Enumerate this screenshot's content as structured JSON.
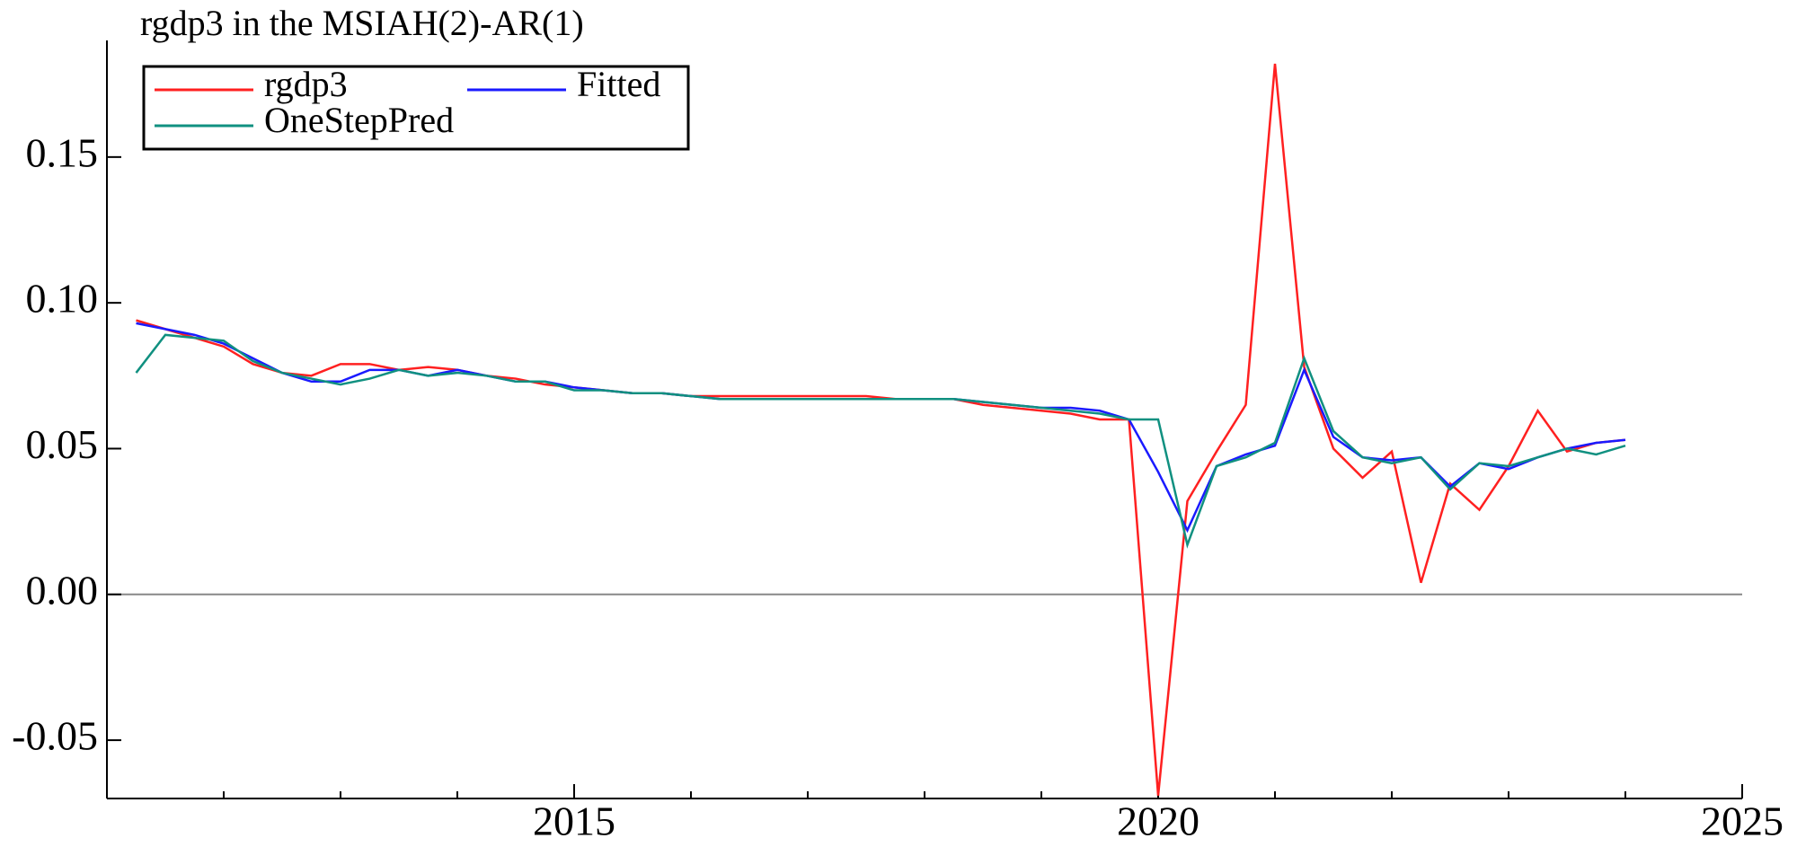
{
  "chart_data": {
    "type": "line",
    "title": "rgdp3 in the MSIAH(2)-AR(1)",
    "x": [
      2011.25,
      2011.5,
      2011.75,
      2012,
      2012.25,
      2012.5,
      2012.75,
      2013,
      2013.25,
      2013.5,
      2013.75,
      2014,
      2014.25,
      2014.5,
      2014.75,
      2015,
      2015.25,
      2015.5,
      2015.75,
      2016,
      2016.25,
      2016.5,
      2016.75,
      2017,
      2017.25,
      2017.5,
      2017.75,
      2018,
      2018.25,
      2018.5,
      2018.75,
      2019,
      2019.25,
      2019.5,
      2019.75,
      2020,
      2020.25,
      2020.5,
      2020.75,
      2021,
      2021.25,
      2021.5,
      2021.75,
      2022,
      2022.25,
      2022.5,
      2022.75,
      2023,
      2023.25,
      2023.5,
      2023.75,
      2024
    ],
    "series": [
      {
        "name": "rgdp3",
        "color": "#ff2020",
        "values": [
          0.094,
          0.091,
          0.088,
          0.085,
          0.079,
          0.076,
          0.075,
          0.079,
          0.079,
          0.077,
          0.078,
          0.077,
          0.075,
          0.074,
          0.072,
          0.071,
          0.07,
          0.069,
          0.069,
          0.068,
          0.068,
          0.068,
          0.068,
          0.068,
          0.068,
          0.068,
          0.067,
          0.067,
          0.067,
          0.065,
          0.064,
          0.063,
          0.062,
          0.06,
          0.06,
          -0.069,
          0.032,
          0.049,
          0.065,
          0.182,
          0.078,
          0.05,
          0.04,
          0.049,
          0.004,
          0.038,
          0.029,
          0.044,
          0.063,
          0.049,
          0.052,
          0.053
        ]
      },
      {
        "name": "Fitted",
        "color": "#1a1aff",
        "values": [
          0.093,
          0.091,
          0.089,
          0.086,
          0.081,
          0.076,
          0.073,
          0.073,
          0.077,
          0.077,
          0.075,
          0.077,
          0.075,
          0.073,
          0.073,
          0.071,
          0.07,
          0.069,
          0.069,
          0.068,
          0.067,
          0.067,
          0.067,
          0.067,
          0.067,
          0.067,
          0.067,
          0.067,
          0.067,
          0.066,
          0.065,
          0.064,
          0.064,
          0.063,
          0.06,
          0.042,
          0.022,
          0.044,
          0.048,
          0.051,
          0.077,
          0.054,
          0.047,
          0.046,
          0.047,
          0.037,
          0.045,
          0.043,
          0.047,
          0.05,
          0.052,
          0.053
        ]
      },
      {
        "name": "OneStepPred",
        "color": "#109080",
        "values": [
          0.076,
          0.089,
          0.088,
          0.087,
          0.08,
          0.076,
          0.074,
          0.072,
          0.074,
          0.077,
          0.075,
          0.076,
          0.075,
          0.073,
          0.073,
          0.07,
          0.07,
          0.069,
          0.069,
          0.068,
          0.067,
          0.067,
          0.067,
          0.067,
          0.067,
          0.067,
          0.067,
          0.067,
          0.067,
          0.066,
          0.065,
          0.064,
          0.063,
          0.062,
          0.06,
          0.06,
          0.017,
          0.044,
          0.047,
          0.052,
          0.081,
          0.056,
          0.047,
          0.045,
          0.047,
          0.036,
          0.045,
          0.044,
          0.047,
          0.05,
          0.048,
          0.051
        ]
      }
    ],
    "xlim": [
      2011,
      2025
    ],
    "xticks": [
      2015,
      2020,
      2025
    ],
    "ylim": [
      -0.07,
      0.19
    ],
    "yticks": [
      {
        "value": -0.05,
        "label": "-0.05"
      },
      {
        "value": 0,
        "label": "0.00"
      },
      {
        "value": 0.05,
        "label": "0.05"
      },
      {
        "value": 0.1,
        "label": "0.10"
      },
      {
        "value": 0.15,
        "label": "0.15"
      }
    ]
  }
}
